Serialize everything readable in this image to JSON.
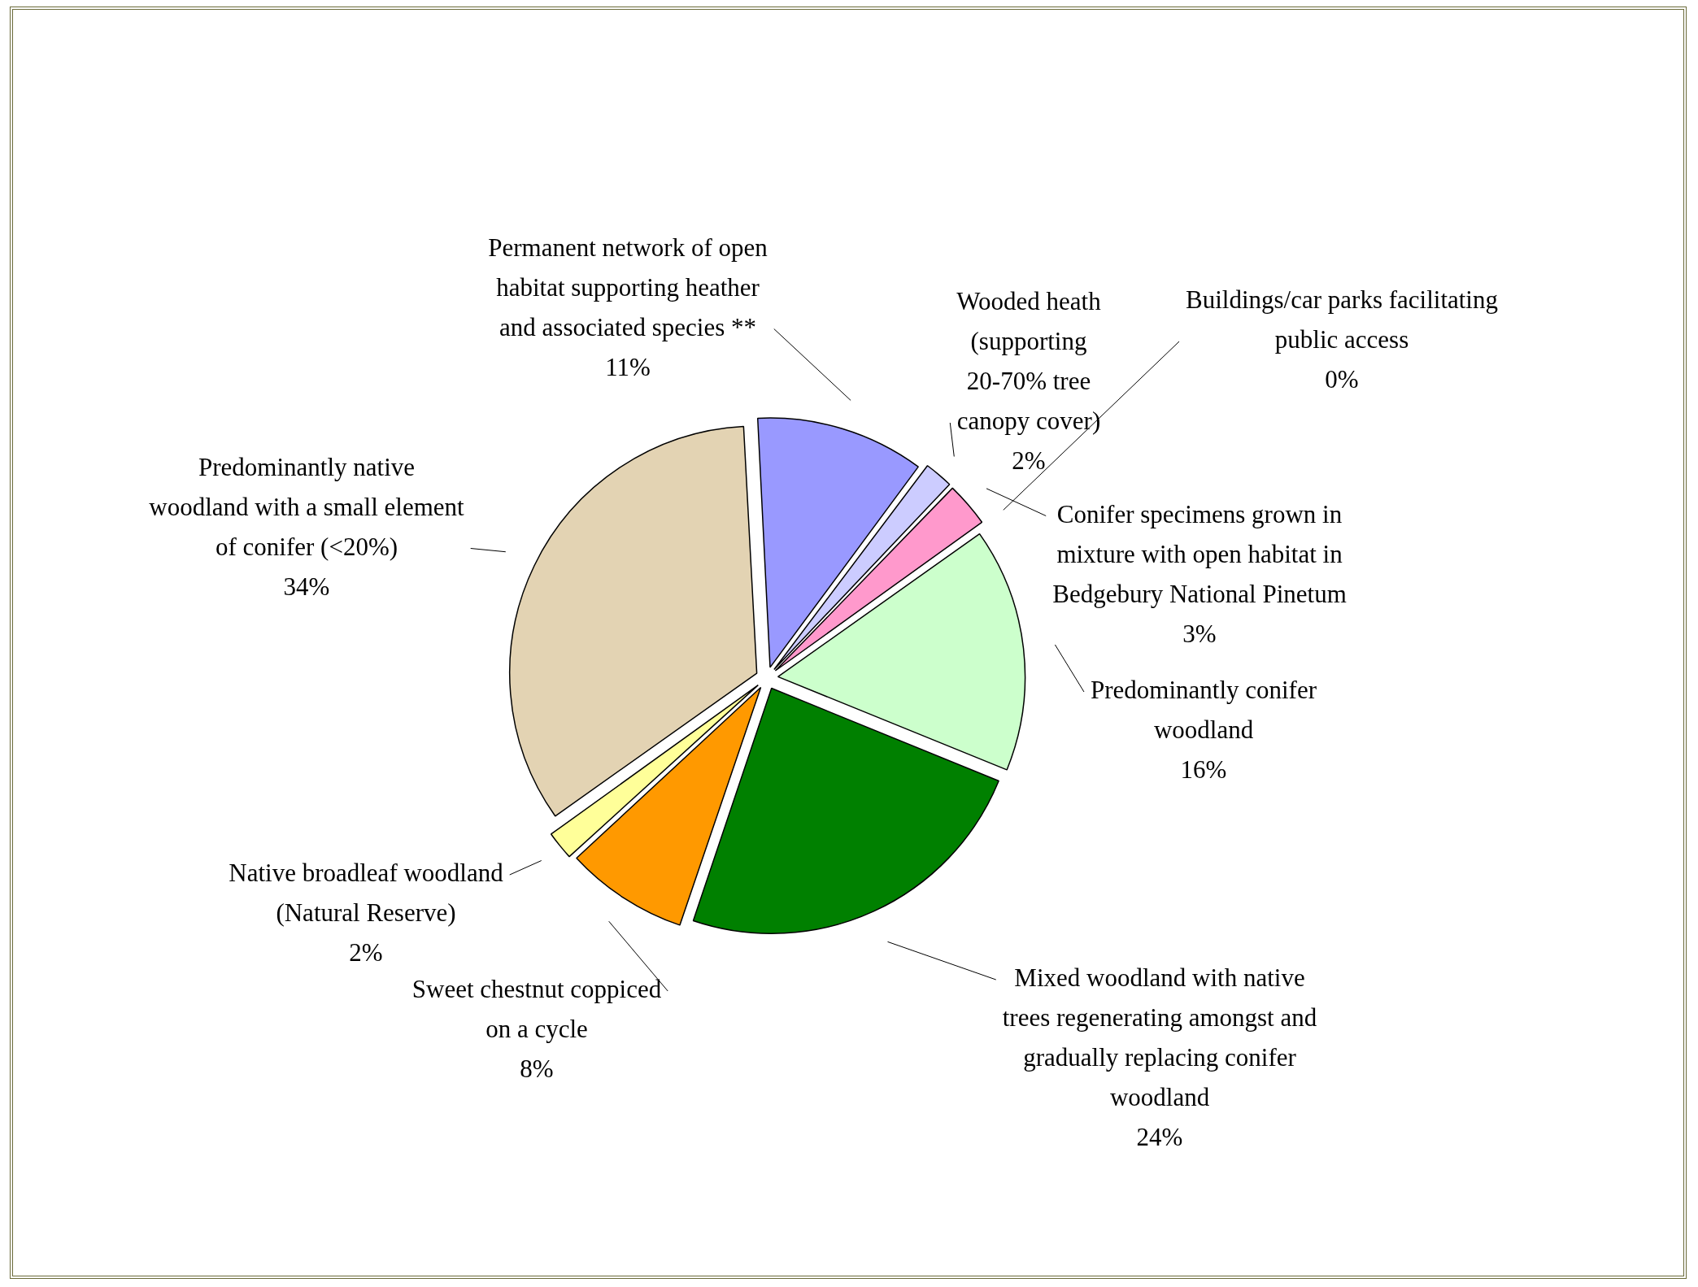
{
  "chart_data": {
    "type": "pie",
    "categories": [
      "Permanent network of open habitat supporting heather and associated species **",
      "Wooded heath (supporting 20-70% tree canopy cover)",
      "Conifer specimens grown in mixture with open habitat in Bedgebury National Pinetum",
      "Buildings/car parks facilitating public access",
      "Predominantly conifer woodland",
      "Mixed woodland with native trees regenerating amongst and gradually replacing conifer woodland",
      "Sweet chestnut coppiced on a cycle",
      "Native broadleaf woodland (Natural Reserve)",
      "Predominantly native woodland with a small element of conifer (<20%)"
    ],
    "values": [
      11,
      2,
      3,
      0,
      16,
      24,
      8,
      2,
      34
    ],
    "value_labels": [
      "11%",
      "2%",
      "3%",
      "0%",
      "16%",
      "24%",
      "8%",
      "2%",
      "34%"
    ],
    "colors": [
      "#9999ff",
      "#ccccff",
      "#ff99cc",
      "#808080",
      "#ccffcc",
      "#008000",
      "#ff9900",
      "#ffff99",
      "#e3d3b3"
    ]
  }
}
